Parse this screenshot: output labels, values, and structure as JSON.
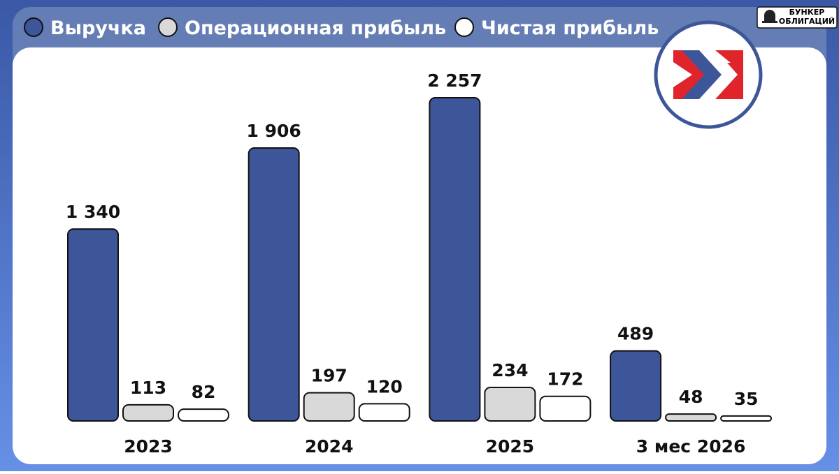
{
  "chart_data": {
    "type": "bar",
    "categories": [
      "2023",
      "2024",
      "2025",
      "3 мес 2026"
    ],
    "series": [
      {
        "name": "Выручка",
        "color": "#3d5699",
        "values": [
          1340,
          1906,
          2257,
          489
        ],
        "value_labels": [
          "1 340",
          "1 906",
          "2 257",
          "489"
        ]
      },
      {
        "name": "Операционная прибыль",
        "color": "#d9d9d9",
        "values": [
          113,
          197,
          234,
          48
        ]
      },
      {
        "name": "Чистая прибыль",
        "color": "#ffffff",
        "values": [
          82,
          120,
          172,
          35
        ]
      }
    ]
  },
  "logo_text": [
    "БУНКЕР",
    "ОБЛИГАЦИЙ"
  ]
}
